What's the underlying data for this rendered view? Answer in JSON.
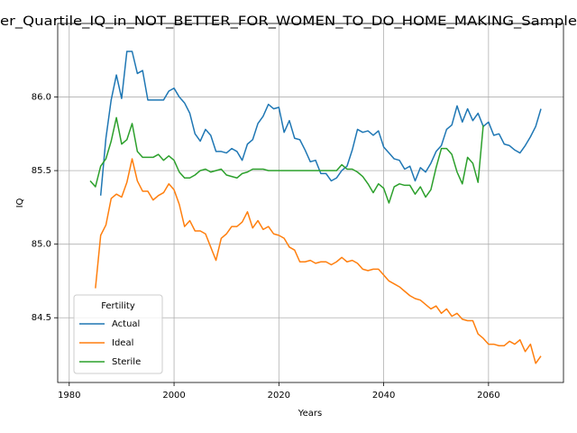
{
  "chart_data": {
    "type": "line",
    "title": "er_Quartile_IQ_in_NOT_BETTER_FOR_WOMEN_TO_DO_HOME_MAKING_Sample",
    "x_label": "Years",
    "y_label": "IQ",
    "x": [
      1984,
      1985,
      1986,
      1987,
      1988,
      1989,
      1990,
      1991,
      1992,
      1993,
      1994,
      1995,
      1996,
      1997,
      1998,
      1999,
      2000,
      2001,
      2002,
      2003,
      2004,
      2005,
      2006,
      2007,
      2008,
      2009,
      2010,
      2011,
      2012,
      2013,
      2014,
      2015,
      2016,
      2017,
      2018,
      2019,
      2020,
      2021,
      2022,
      2023,
      2024,
      2025,
      2026,
      2027,
      2028,
      2029,
      2030,
      2031,
      2032,
      2033,
      2034,
      2035,
      2036,
      2037,
      2038,
      2039,
      2040,
      2041,
      2042,
      2043,
      2044,
      2045,
      2046,
      2047,
      2048,
      2049,
      2050,
      2051,
      2052,
      2053,
      2054,
      2055,
      2056,
      2057,
      2058,
      2059,
      2060,
      2061,
      2062,
      2063,
      2064,
      2065,
      2066,
      2067,
      2068,
      2069,
      2070
    ],
    "series": [
      {
        "name": "Actual",
        "color": "#1f77b4",
        "values": [
          null,
          null,
          85.33,
          85.72,
          85.98,
          86.15,
          85.99,
          86.31,
          86.31,
          86.16,
          86.18,
          85.98,
          85.98,
          85.98,
          85.98,
          86.04,
          86.06,
          86.0,
          85.96,
          85.89,
          85.75,
          85.7,
          85.78,
          85.74,
          85.63,
          85.63,
          85.62,
          85.65,
          85.63,
          85.57,
          85.68,
          85.71,
          85.82,
          85.87,
          85.95,
          85.92,
          85.93,
          85.76,
          85.84,
          85.72,
          85.71,
          85.64,
          85.56,
          85.57,
          85.48,
          85.48,
          85.43,
          85.45,
          85.5,
          85.53,
          85.64,
          85.78,
          85.76,
          85.77,
          85.74,
          85.77,
          85.66,
          85.62,
          85.58,
          85.57,
          85.51,
          85.53,
          85.43,
          85.52,
          85.49,
          85.55,
          85.63,
          85.67,
          85.78,
          85.81,
          85.94,
          85.83,
          85.92,
          85.84,
          85.89,
          85.8,
          85.83,
          85.74,
          85.75,
          85.68,
          85.67,
          85.64,
          85.62,
          85.67,
          85.73,
          85.8,
          85.92
        ]
      },
      {
        "name": "Ideal",
        "color": "#ff7f0e",
        "values": [
          null,
          84.7,
          85.06,
          85.13,
          85.31,
          85.34,
          85.32,
          85.42,
          85.58,
          85.43,
          85.36,
          85.36,
          85.3,
          85.33,
          85.35,
          85.41,
          85.37,
          85.27,
          85.12,
          85.16,
          85.09,
          85.09,
          85.07,
          84.98,
          84.89,
          85.04,
          85.07,
          85.12,
          85.12,
          85.15,
          85.22,
          85.11,
          85.16,
          85.1,
          85.12,
          85.07,
          85.06,
          85.04,
          84.98,
          84.96,
          84.88,
          84.88,
          84.89,
          84.87,
          84.88,
          84.88,
          84.86,
          84.88,
          84.91,
          84.88,
          84.89,
          84.87,
          84.83,
          84.82,
          84.83,
          84.83,
          84.79,
          84.75,
          84.73,
          84.71,
          84.68,
          84.65,
          84.63,
          84.62,
          84.59,
          84.56,
          84.58,
          84.53,
          84.56,
          84.51,
          84.53,
          84.49,
          84.48,
          84.48,
          84.39,
          84.36,
          84.32,
          84.32,
          84.31,
          84.31,
          84.34,
          84.32,
          84.35,
          84.27,
          84.32,
          84.19,
          84.24
        ]
      },
      {
        "name": "Sterile",
        "color": "#2ca02c",
        "values": [
          85.43,
          85.39,
          85.53,
          85.58,
          85.7,
          85.86,
          85.68,
          85.71,
          85.82,
          85.63,
          85.59,
          85.59,
          85.59,
          85.61,
          85.57,
          85.6,
          85.57,
          85.49,
          85.45,
          85.45,
          85.47,
          85.5,
          85.51,
          85.49,
          85.5,
          85.51,
          85.47,
          85.46,
          85.45,
          85.48,
          85.49,
          85.51,
          85.51,
          85.51,
          85.5,
          85.5,
          85.5,
          85.5,
          85.5,
          85.5,
          85.5,
          85.5,
          85.5,
          85.5,
          85.5,
          85.5,
          85.5,
          85.5,
          85.54,
          85.51,
          85.51,
          85.49,
          85.46,
          85.41,
          85.35,
          85.41,
          85.38,
          85.28,
          85.39,
          85.41,
          85.4,
          85.4,
          85.34,
          85.39,
          85.32,
          85.37,
          85.52,
          85.65,
          85.65,
          85.61,
          85.49,
          85.41,
          85.59,
          85.55,
          85.42,
          85.81,
          null,
          null,
          null,
          null,
          null,
          null,
          null,
          null,
          null,
          null,
          null
        ]
      }
    ],
    "xlim": [
      1977.8,
      2074.3
    ],
    "ylim": [
      84.06,
      86.5
    ],
    "xticks": [
      1980,
      2000,
      2020,
      2040,
      2060
    ],
    "yticks": [
      84.5,
      {
        "value": 85.0,
        "label": "85.0"
      },
      85.5,
      {
        "value": 86.0,
        "label": "86.0"
      }
    ],
    "grid": true,
    "legend_title": "Fertility",
    "legend_position": "lower left"
  }
}
